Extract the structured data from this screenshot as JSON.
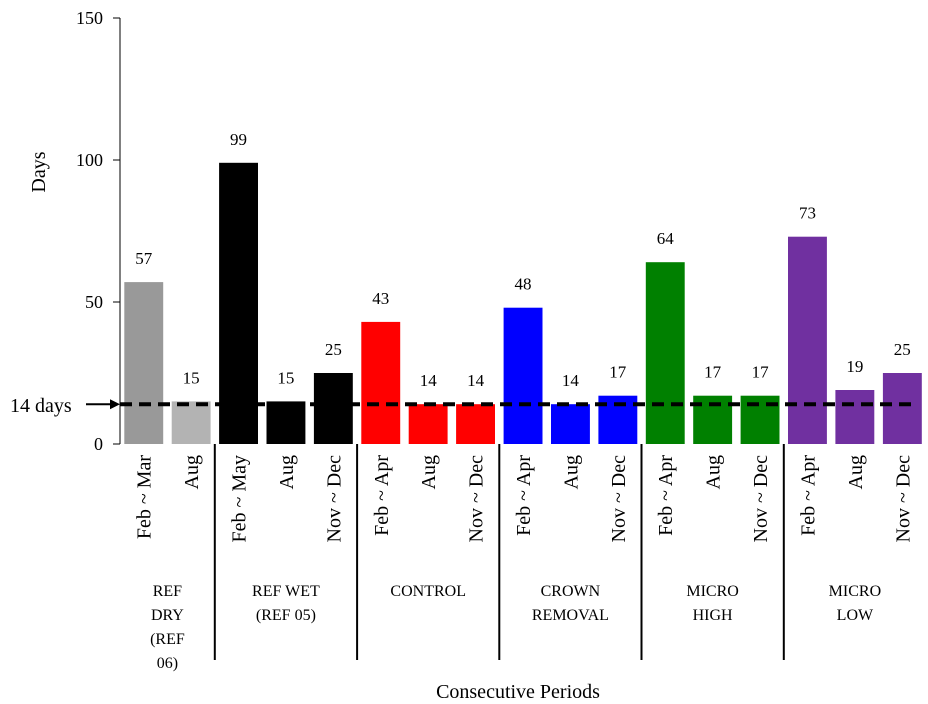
{
  "chart_data": {
    "type": "bar",
    "xlabel": "Consecutive Periods",
    "ylabel": "Days",
    "ylim": [
      0,
      150
    ],
    "yticks": [
      0,
      50,
      100,
      150
    ],
    "grid": false,
    "reference_line": {
      "value": 14,
      "label": "14 days",
      "style": "dashed"
    },
    "groups": [
      {
        "name": [
          "REF",
          "DRY",
          "(REF",
          "06)"
        ],
        "color": "#999999",
        "bars": [
          {
            "category": "Feb ~ Mar",
            "value": 57,
            "color": "#999999"
          },
          {
            "category": "Aug",
            "value": 15,
            "color": "#b3b3b3"
          }
        ]
      },
      {
        "name": [
          "REF WET",
          "(REF 05)"
        ],
        "color": "#000000",
        "bars": [
          {
            "category": "Feb ~ May",
            "value": 99
          },
          {
            "category": "Aug",
            "value": 15
          },
          {
            "category": "Nov ~ Dec",
            "value": 25
          }
        ]
      },
      {
        "name": [
          "CONTROL"
        ],
        "color": "#ff0000",
        "bars": [
          {
            "category": "Feb ~ Apr",
            "value": 43
          },
          {
            "category": "Aug",
            "value": 14
          },
          {
            "category": "Nov ~ Dec",
            "value": 14
          }
        ]
      },
      {
        "name": [
          "CROWN",
          "REMOVAL"
        ],
        "color": "#0000ff",
        "bars": [
          {
            "category": "Feb ~ Apr",
            "value": 48
          },
          {
            "category": "Aug",
            "value": 14
          },
          {
            "category": "Nov ~ Dec",
            "value": 17
          }
        ]
      },
      {
        "name": [
          "MICRO",
          "HIGH"
        ],
        "color": "#008000",
        "bars": [
          {
            "category": "Feb ~ Apr",
            "value": 64
          },
          {
            "category": "Aug",
            "value": 17
          },
          {
            "category": "Nov ~ Dec",
            "value": 17
          }
        ]
      },
      {
        "name": [
          "MICRO",
          "LOW"
        ],
        "color": "#7030a0",
        "bars": [
          {
            "category": "Feb ~ Apr",
            "value": 73
          },
          {
            "category": "Aug",
            "value": 19
          },
          {
            "category": "Nov ~ Dec",
            "value": 25
          }
        ]
      }
    ]
  }
}
